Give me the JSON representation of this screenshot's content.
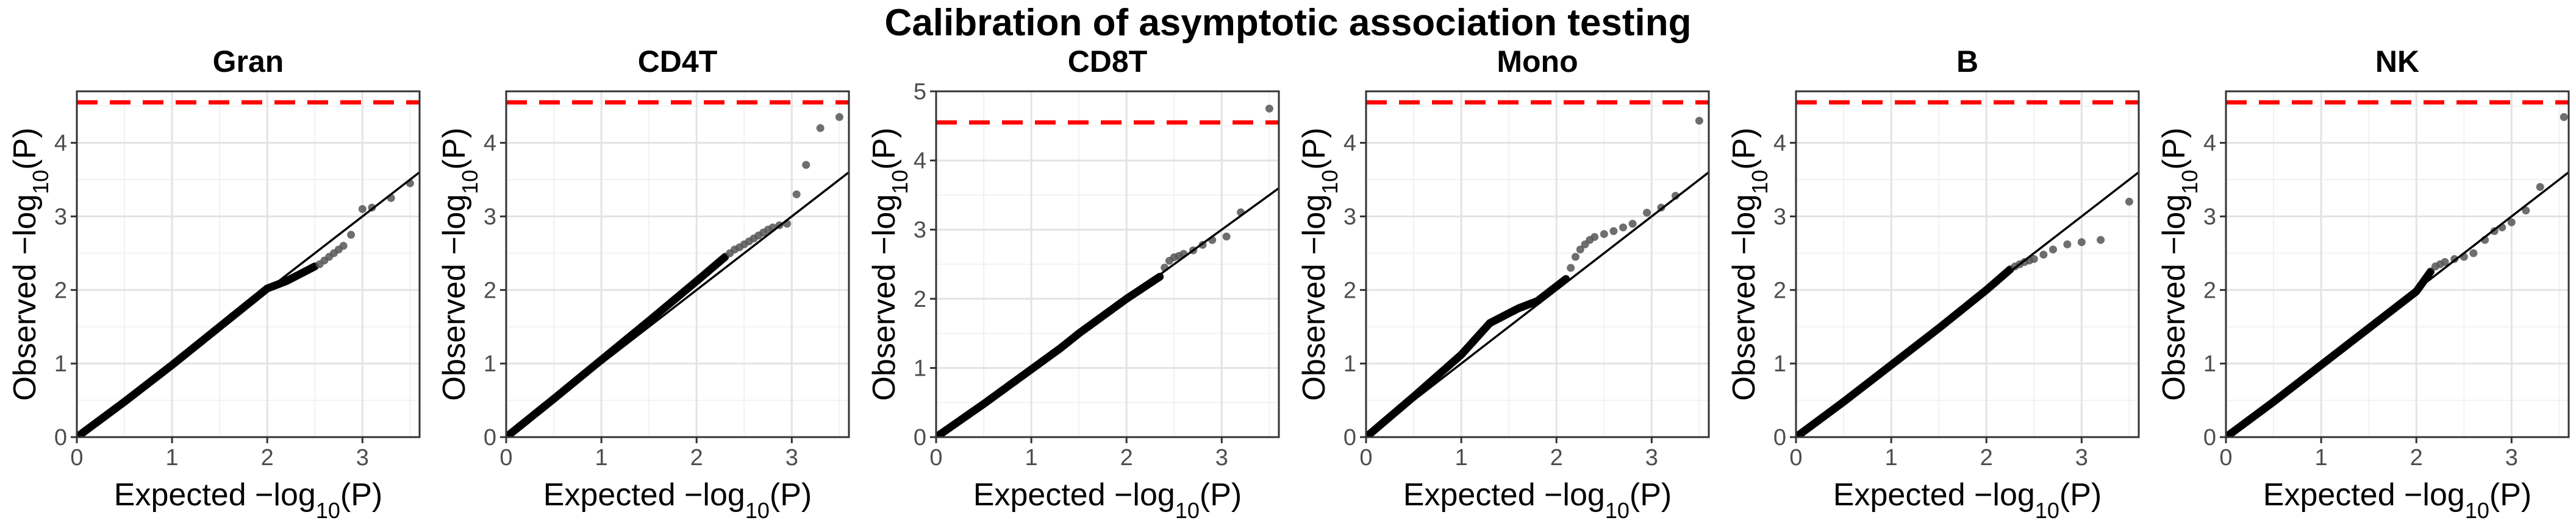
{
  "figure": {
    "title": "Calibration of asymptotic association testing"
  },
  "chart_data": [
    {
      "type": "scatter",
      "title": "Gran",
      "xlabel": "Expected −log10(P)",
      "ylabel": "Observed −log10(P)",
      "xlim": [
        0,
        3.6
      ],
      "ylim": [
        0,
        4.7
      ],
      "xticks": [
        0,
        1,
        2,
        3
      ],
      "yticks": [
        0,
        1,
        2,
        3,
        4
      ],
      "reference_line": {
        "slope": 1,
        "intercept": 0
      },
      "threshold_line": {
        "y": 4.55,
        "color": "#ff0000",
        "style": "dashed"
      },
      "dense_to": 2.5,
      "trend": [
        [
          0,
          0
        ],
        [
          0.5,
          0.48
        ],
        [
          1,
          0.98
        ],
        [
          1.5,
          1.5
        ],
        [
          2,
          2.02
        ],
        [
          2.2,
          2.12
        ],
        [
          2.5,
          2.32
        ]
      ],
      "tail_points": [
        [
          2.55,
          2.35
        ],
        [
          2.6,
          2.4
        ],
        [
          2.65,
          2.45
        ],
        [
          2.7,
          2.5
        ],
        [
          2.75,
          2.55
        ],
        [
          2.8,
          2.6
        ],
        [
          2.88,
          2.75
        ],
        [
          3.0,
          3.1
        ],
        [
          3.1,
          3.12
        ],
        [
          3.3,
          3.25
        ],
        [
          3.5,
          3.45
        ]
      ]
    },
    {
      "type": "scatter",
      "title": "CD4T",
      "xlabel": "Expected −log10(P)",
      "ylabel": "Observed −log10(P)",
      "xlim": [
        0,
        3.6
      ],
      "ylim": [
        0,
        4.7
      ],
      "xticks": [
        0,
        1,
        2,
        3
      ],
      "yticks": [
        0,
        1,
        2,
        3,
        4
      ],
      "reference_line": {
        "slope": 1,
        "intercept": 0
      },
      "threshold_line": {
        "y": 4.55,
        "color": "#ff0000",
        "style": "dashed"
      },
      "dense_to": 2.3,
      "trend": [
        [
          0,
          0
        ],
        [
          0.5,
          0.52
        ],
        [
          1,
          1.05
        ],
        [
          1.5,
          1.58
        ],
        [
          2,
          2.12
        ],
        [
          2.3,
          2.45
        ]
      ],
      "tail_points": [
        [
          2.35,
          2.5
        ],
        [
          2.4,
          2.55
        ],
        [
          2.45,
          2.58
        ],
        [
          2.5,
          2.62
        ],
        [
          2.55,
          2.66
        ],
        [
          2.6,
          2.7
        ],
        [
          2.65,
          2.74
        ],
        [
          2.7,
          2.78
        ],
        [
          2.75,
          2.82
        ],
        [
          2.8,
          2.85
        ],
        [
          2.87,
          2.88
        ],
        [
          2.95,
          2.9
        ],
        [
          3.05,
          3.3
        ],
        [
          3.15,
          3.7
        ],
        [
          3.3,
          4.2
        ],
        [
          3.5,
          4.35
        ]
      ]
    },
    {
      "type": "scatter",
      "title": "CD8T",
      "xlabel": "Expected −log10(P)",
      "ylabel": "Observed −log10(P)",
      "xlim": [
        0,
        3.6
      ],
      "ylim": [
        0,
        5
      ],
      "xticks": [
        0,
        1,
        2,
        3
      ],
      "yticks": [
        0,
        1,
        2,
        3,
        4,
        5
      ],
      "reference_line": {
        "slope": 1,
        "intercept": 0
      },
      "threshold_line": {
        "y": 4.55,
        "color": "#ff0000",
        "style": "dashed"
      },
      "dense_to": 2.35,
      "trend": [
        [
          0,
          0
        ],
        [
          0.5,
          0.48
        ],
        [
          1,
          0.98
        ],
        [
          1.3,
          1.28
        ],
        [
          1.5,
          1.5
        ],
        [
          2,
          2.0
        ],
        [
          2.35,
          2.32
        ]
      ],
      "tail_points": [
        [
          2.4,
          2.45
        ],
        [
          2.45,
          2.55
        ],
        [
          2.5,
          2.6
        ],
        [
          2.55,
          2.62
        ],
        [
          2.6,
          2.65
        ],
        [
          2.7,
          2.7
        ],
        [
          2.8,
          2.78
        ],
        [
          2.9,
          2.85
        ],
        [
          3.05,
          2.9
        ],
        [
          3.2,
          3.25
        ],
        [
          3.5,
          4.75
        ]
      ]
    },
    {
      "type": "scatter",
      "title": "Mono",
      "xlabel": "Expected −log10(P)",
      "ylabel": "Observed −log10(P)",
      "xlim": [
        0,
        3.6
      ],
      "ylim": [
        0,
        4.7
      ],
      "xticks": [
        0,
        1,
        2,
        3
      ],
      "yticks": [
        0,
        1,
        2,
        3,
        4
      ],
      "reference_line": {
        "slope": 1,
        "intercept": 0
      },
      "threshold_line": {
        "y": 4.55,
        "color": "#ff0000",
        "style": "dashed"
      },
      "dense_to": 2.1,
      "trend": [
        [
          0,
          0
        ],
        [
          0.5,
          0.55
        ],
        [
          1,
          1.12
        ],
        [
          1.3,
          1.55
        ],
        [
          1.6,
          1.75
        ],
        [
          1.8,
          1.85
        ],
        [
          2.1,
          2.15
        ]
      ],
      "tail_points": [
        [
          2.15,
          2.3
        ],
        [
          2.2,
          2.45
        ],
        [
          2.25,
          2.55
        ],
        [
          2.3,
          2.62
        ],
        [
          2.35,
          2.68
        ],
        [
          2.4,
          2.72
        ],
        [
          2.5,
          2.76
        ],
        [
          2.6,
          2.8
        ],
        [
          2.7,
          2.85
        ],
        [
          2.8,
          2.9
        ],
        [
          2.95,
          3.05
        ],
        [
          3.1,
          3.12
        ],
        [
          3.25,
          3.28
        ],
        [
          3.5,
          4.3
        ]
      ]
    },
    {
      "type": "scatter",
      "title": "B",
      "xlabel": "Expected −log10(P)",
      "ylabel": "Observed −log10(P)",
      "xlim": [
        0,
        3.6
      ],
      "ylim": [
        0,
        4.7
      ],
      "xticks": [
        0,
        1,
        2,
        3
      ],
      "yticks": [
        0,
        1,
        2,
        3,
        4
      ],
      "reference_line": {
        "slope": 1,
        "intercept": 0
      },
      "threshold_line": {
        "y": 4.55,
        "color": "#ff0000",
        "style": "dashed"
      },
      "dense_to": 2.25,
      "trend": [
        [
          0,
          0
        ],
        [
          0.5,
          0.48
        ],
        [
          1,
          0.98
        ],
        [
          1.5,
          1.48
        ],
        [
          2,
          2.0
        ],
        [
          2.25,
          2.28
        ]
      ],
      "tail_points": [
        [
          2.3,
          2.32
        ],
        [
          2.35,
          2.35
        ],
        [
          2.4,
          2.38
        ],
        [
          2.45,
          2.4
        ],
        [
          2.5,
          2.42
        ],
        [
          2.6,
          2.48
        ],
        [
          2.7,
          2.55
        ],
        [
          2.85,
          2.62
        ],
        [
          3.0,
          2.65
        ],
        [
          3.2,
          2.68
        ],
        [
          3.5,
          3.2
        ]
      ]
    },
    {
      "type": "scatter",
      "title": "NK",
      "xlabel": "Expected −log10(P)",
      "ylabel": "Observed −log10(P)",
      "xlim": [
        0,
        3.6
      ],
      "ylim": [
        0,
        4.7
      ],
      "xticks": [
        0,
        1,
        2,
        3
      ],
      "yticks": [
        0,
        1,
        2,
        3,
        4
      ],
      "reference_line": {
        "slope": 1,
        "intercept": 0
      },
      "threshold_line": {
        "y": 4.55,
        "color": "#ff0000",
        "style": "dashed"
      },
      "dense_to": 2.15,
      "trend": [
        [
          0,
          0
        ],
        [
          0.5,
          0.48
        ],
        [
          1,
          0.98
        ],
        [
          1.5,
          1.48
        ],
        [
          2,
          1.98
        ],
        [
          2.15,
          2.25
        ]
      ],
      "tail_points": [
        [
          2.2,
          2.32
        ],
        [
          2.25,
          2.35
        ],
        [
          2.3,
          2.38
        ],
        [
          2.4,
          2.42
        ],
        [
          2.5,
          2.45
        ],
        [
          2.6,
          2.5
        ],
        [
          2.72,
          2.68
        ],
        [
          2.82,
          2.8
        ],
        [
          2.9,
          2.85
        ],
        [
          3.0,
          2.92
        ],
        [
          3.15,
          3.08
        ],
        [
          3.3,
          3.4
        ],
        [
          3.55,
          4.35
        ]
      ]
    }
  ]
}
